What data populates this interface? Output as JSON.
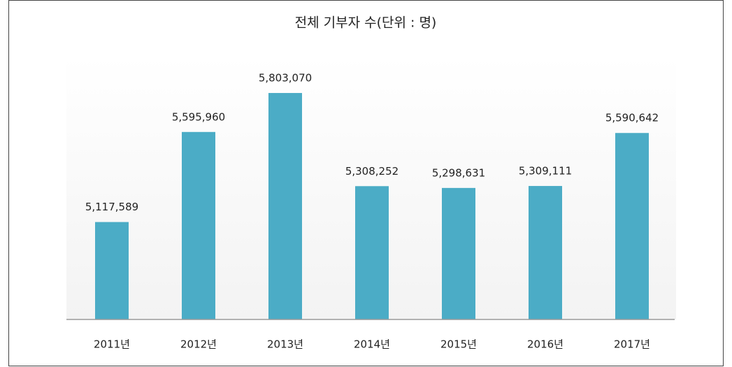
{
  "chart_data": {
    "type": "bar",
    "title": "전체 기부자 수(단위 : 명)",
    "categories": [
      "2011년",
      "2012년",
      "2013년",
      "2014년",
      "2015년",
      "2016년",
      "2017년"
    ],
    "values": [
      5117589,
      5595960,
      5803070,
      5308252,
      5298631,
      5309111,
      5590642
    ],
    "value_labels": [
      "5,117,589",
      "5,595,960",
      "5,803,070",
      "5,308,252",
      "5,298,631",
      "5,309,111",
      "5,590,642"
    ],
    "color": "#4bacc6",
    "ylim": [
      4600000,
      6000000
    ]
  }
}
